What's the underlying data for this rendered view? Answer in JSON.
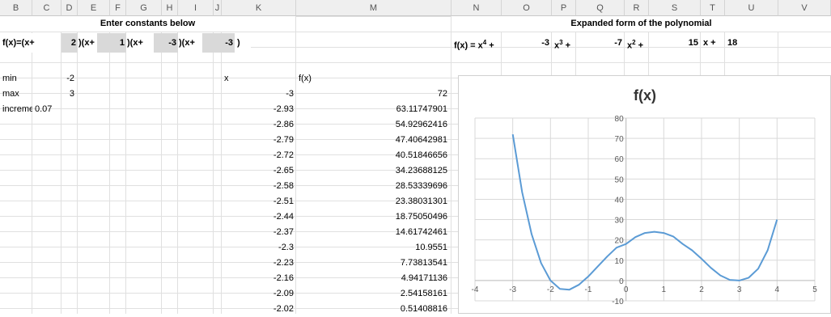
{
  "columns": [
    "B",
    "C",
    "D",
    "E",
    "F",
    "G",
    "H",
    "I",
    "J",
    "K",
    "M",
    "N",
    "O",
    "P",
    "Q",
    "R",
    "S",
    "T",
    "U",
    "V"
  ],
  "title_left": "Enter constants below",
  "title_right": "Expanded form of the polynomial",
  "fx_row": {
    "label": "f(x)=(x+",
    "c1": "2",
    "p1": ")(x+",
    "c2": "1",
    "p2": ")(x+",
    "c3": "-3",
    "p3": ")(x+",
    "c4": "-3",
    "close": ")"
  },
  "expanded": {
    "label": "f(x) = x",
    "sup4": "4",
    "plus1": " +",
    "a3": "-3",
    "x3": "x",
    "sup3": "3",
    "plus3": " +",
    "a2": "-7",
    "x2": "x",
    "sup2": "2",
    "plus2": " +",
    "a1": "15",
    "x1": "x +",
    "a0": "18"
  },
  "params": {
    "min_label": "min",
    "min_value": "-2",
    "max_label": "max",
    "max_value": "3",
    "inc_label": "increme",
    "inc_value": "0.07"
  },
  "table": {
    "x_header": "x",
    "fx_header": "f(x)",
    "x_values": [
      "-3",
      "-2.93",
      "-2.86",
      "-2.79",
      "-2.72",
      "-2.65",
      "-2.58",
      "-2.51",
      "-2.44",
      "-2.37",
      "-2.3",
      "-2.23",
      "-2.16",
      "-2.09",
      "-2.02"
    ],
    "fx_values": [
      "72",
      "63.11747901",
      "54.92962416",
      "47.40642981",
      "40.51846656",
      "34.23688125",
      "28.53339696",
      "23.38031301",
      "18.75050496",
      "14.61742461",
      "10.9551",
      "7.73813541",
      "4.94171136",
      "2.54158161",
      "0.51408816"
    ]
  },
  "chart_data": {
    "type": "line",
    "title": "f(x)",
    "xlim": [
      -4,
      5
    ],
    "ylim": [
      -10,
      80
    ],
    "x_ticks": [
      "-4",
      "-3",
      "-2",
      "-1",
      "0",
      "1",
      "2",
      "3",
      "4",
      "5"
    ],
    "y_ticks": [
      "-10",
      "0",
      "10",
      "20",
      "30",
      "40",
      "50",
      "60",
      "70",
      "80"
    ],
    "grid": true,
    "series": [
      {
        "color": "#5b9bd5",
        "x": [
          -3,
          -2.75,
          -2.5,
          -2.25,
          -2,
          -1.75,
          -1.5,
          -1.25,
          -1,
          -0.75,
          -0.5,
          -0.25,
          0,
          0.25,
          0.5,
          0.75,
          1,
          1.25,
          1.5,
          1.75,
          2,
          2.25,
          2.5,
          2.75,
          3,
          3.25,
          3.5,
          3.75,
          4
        ],
        "y": [
          72,
          43.5,
          22.8,
          8.6,
          0,
          -4.1,
          -4.5,
          -2.1,
          2,
          6.9,
          11.8,
          16.2,
          18,
          21.4,
          23.4,
          24,
          23.4,
          21.7,
          18,
          14.9,
          10.7,
          6.2,
          2.5,
          0.3,
          0,
          1.4,
          5.8,
          14.9,
          30
        ]
      }
    ]
  }
}
